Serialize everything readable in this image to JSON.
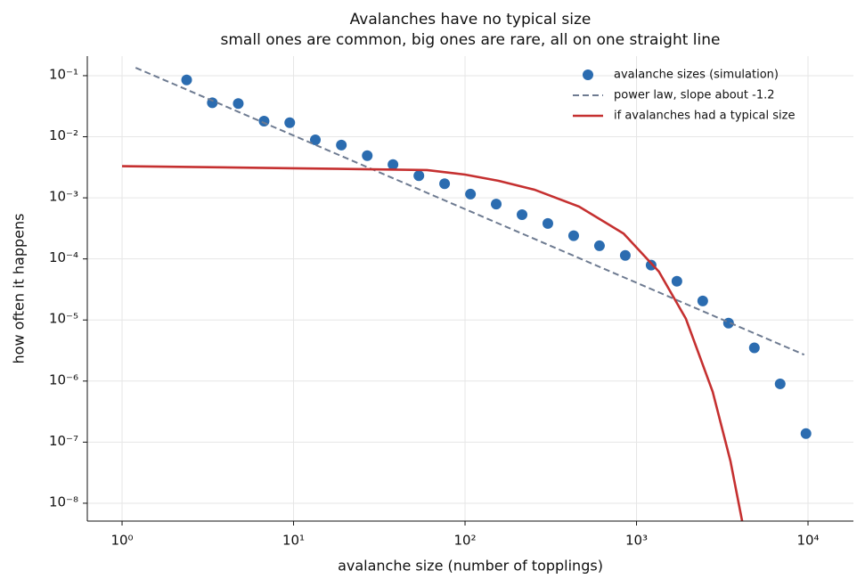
{
  "chart_data": {
    "type": "scatter",
    "title": "Avalanches have no typical size",
    "subtitle": "small ones are common, big ones are rare, all on one straight line",
    "x_label": "avalanche size  (number of topplings)",
    "y_label": "how often it happens",
    "log_x": true,
    "log_y": true,
    "grid": true,
    "legend": "upper right",
    "xlim": [
      0.627,
      18400
    ],
    "ylim": [
      5.1e-09,
      0.209
    ],
    "xticks": [
      {
        "value": 1,
        "label": "10⁰"
      },
      {
        "value": 10,
        "label": "10¹"
      },
      {
        "value": 100,
        "label": "10²"
      },
      {
        "value": 1000,
        "label": "10³"
      },
      {
        "value": 10000,
        "label": "10⁴"
      }
    ],
    "yticks": [
      {
        "value": 1e-08,
        "label": "10⁻⁸"
      },
      {
        "value": 1e-07,
        "label": "10⁻⁷"
      },
      {
        "value": 1e-06,
        "label": "10⁻⁶"
      },
      {
        "value": 1e-05,
        "label": "10⁻⁵"
      },
      {
        "value": 0.0001,
        "label": "10⁻⁴"
      },
      {
        "value": 0.001,
        "label": "10⁻³"
      },
      {
        "value": 0.01,
        "label": "10⁻²"
      },
      {
        "value": 0.1,
        "label": "10⁻¹"
      }
    ],
    "series": [
      {
        "name": "avalanche sizes (simulation)",
        "type": "scatter",
        "color": "#2b6cb0",
        "x": [
          2.38,
          3.36,
          4.76,
          6.73,
          9.5,
          13.4,
          19,
          26.9,
          38,
          53.8,
          76,
          107.6,
          152,
          215,
          304,
          430,
          608,
          860,
          1217,
          1720,
          2433,
          3440,
          4866,
          6880,
          9730
        ],
        "values": [
          0.085,
          0.036,
          0.035,
          0.018,
          0.017,
          0.0089,
          0.0073,
          0.0049,
          0.0035,
          0.0023,
          0.0017,
          0.00115,
          0.00079,
          0.00053,
          0.00038,
          0.00024,
          0.000164,
          0.000114,
          7.9e-05,
          4.3e-05,
          2.05e-05,
          8.9e-06,
          3.5e-06,
          9e-07,
          1.38e-07
        ]
      },
      {
        "name": "power law, slope about -1.2",
        "type": "line",
        "style": "dashed",
        "color": "#6e7b91",
        "x": [
          1.2,
          9500
        ],
        "values": [
          0.135,
          2.7e-06
        ]
      },
      {
        "name": "if avalanches had a typical size",
        "type": "line",
        "style": "solid",
        "color": "#c53030",
        "x": [
          1,
          10,
          60,
          100,
          157,
          254,
          462,
          841,
          1350,
          1940,
          2780,
          3530,
          4130
        ],
        "values": [
          0.0033,
          0.00305,
          0.00285,
          0.0024,
          0.0019,
          0.00136,
          0.00072,
          0.00026,
          6.2e-05,
          1.05e-05,
          6.7e-07,
          4.9e-08,
          5.1e-09
        ]
      }
    ]
  }
}
